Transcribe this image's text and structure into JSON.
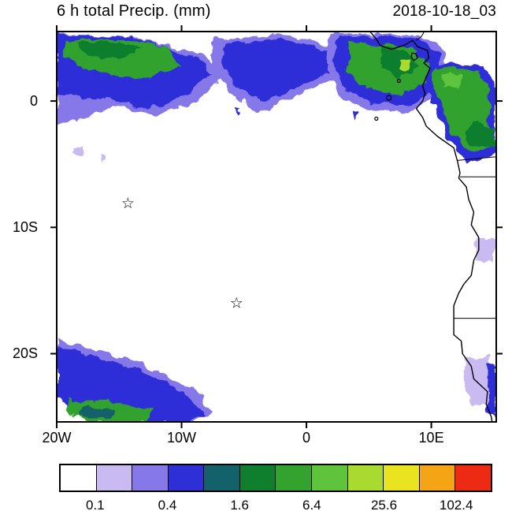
{
  "chart_data": {
    "type": "heatmap",
    "title": "6 h total Precip. (mm)",
    "timestamp": "2018-10-18_03",
    "units": "mm",
    "x_axis": {
      "range": [
        -20,
        15.2
      ],
      "ticks": [
        {
          "label": "20W",
          "lon": -20
        },
        {
          "label": "10W",
          "lon": -10
        },
        {
          "label": "0",
          "lon": 0
        },
        {
          "label": "10E",
          "lon": 10
        }
      ]
    },
    "y_axis": {
      "range": [
        -25.4,
        5.5
      ],
      "ticks": [
        {
          "label": "0",
          "lat": 0
        },
        {
          "label": "10S",
          "lat": -10
        },
        {
          "label": "20S",
          "lat": -20
        }
      ]
    },
    "colorbar": {
      "labels": [
        "0.1",
        "0.4",
        "1.6",
        "6.4",
        "25.6",
        "102.4"
      ],
      "levels_mm": [
        0.1,
        0.2,
        0.4,
        0.8,
        1.6,
        3.2,
        6.4,
        12.8,
        25.6,
        51.2,
        102.4
      ],
      "colors": [
        "#FFFFFF",
        "#C9BAF2",
        "#8678E9",
        "#2F2FD8",
        "#12616B",
        "#0F7E2D",
        "#33A22F",
        "#5FC43C",
        "#A9DA2F",
        "#E9E41F",
        "#F4A414",
        "#ED2B15"
      ]
    },
    "marker_symbol": "☆",
    "markers": [
      {
        "lon": -14.3,
        "lat": -8.1
      },
      {
        "lon": -5.6,
        "lat": -16.0
      }
    ],
    "precip_regions": [
      {
        "level": 2,
        "points": [
          [
            -20,
            5.4
          ],
          [
            -13.8,
            5
          ],
          [
            -8.2,
            3.6
          ],
          [
            -6.6,
            2.1
          ],
          [
            -8.8,
            -0.1
          ],
          [
            -11.9,
            -1.1
          ],
          [
            -15.1,
            -0.4
          ],
          [
            -18.2,
            -1.4
          ],
          [
            -20,
            -2
          ]
        ]
      },
      {
        "level": 3,
        "points": [
          [
            -20,
            5.3
          ],
          [
            -14,
            5
          ],
          [
            -9,
            3.5
          ],
          [
            -7.5,
            2.2
          ],
          [
            -9.5,
            0.5
          ],
          [
            -12.5,
            -0.6
          ],
          [
            -16,
            0.2
          ],
          [
            -20,
            0.5
          ]
        ]
      },
      {
        "level": 6,
        "points": [
          [
            -19.2,
            4.8
          ],
          [
            -14.5,
            4.9
          ],
          [
            -11,
            4.1
          ],
          [
            -10,
            2.7
          ],
          [
            -12.6,
            1.8
          ],
          [
            -15.7,
            2.1
          ],
          [
            -18.2,
            2.7
          ],
          [
            -19.5,
            3.6
          ]
        ]
      },
      {
        "level": 5,
        "points": [
          [
            -18.5,
            4.6
          ],
          [
            -15,
            4.7
          ],
          [
            -13.2,
            4.1
          ],
          [
            -15.2,
            3.4
          ],
          [
            -17.6,
            3.5
          ]
        ]
      },
      {
        "level": 2,
        "points": [
          [
            -7.5,
            4.9
          ],
          [
            -1.5,
            5.2
          ],
          [
            2.3,
            4.2
          ],
          [
            3,
            2.2
          ],
          [
            -0.3,
            0.6
          ],
          [
            -3.9,
            -0.9
          ],
          [
            -6.2,
            0.6
          ],
          [
            -7.6,
            2.8
          ]
        ]
      },
      {
        "level": 3,
        "points": [
          [
            -6.3,
            4.6
          ],
          [
            -1.9,
            4.9
          ],
          [
            1.9,
            3.9
          ],
          [
            2.6,
            2.4
          ],
          [
            -0.6,
            1.1
          ],
          [
            -3.7,
            -0.1
          ],
          [
            -5.6,
            1.1
          ],
          [
            -6.9,
            3
          ]
        ]
      },
      {
        "level": 2,
        "points": [
          [
            1.8,
            5.4
          ],
          [
            9.2,
            5.2
          ],
          [
            11.2,
            3.8
          ],
          [
            10.8,
            0.6
          ],
          [
            8,
            -1
          ],
          [
            4.6,
            -0.6
          ],
          [
            2.2,
            0.8
          ],
          [
            1.6,
            3.4
          ]
        ]
      },
      {
        "level": 3,
        "points": [
          [
            2.6,
            5.2
          ],
          [
            8.9,
            5
          ],
          [
            10.7,
            3.6
          ],
          [
            10.4,
            1.1
          ],
          [
            8.2,
            -0.4
          ],
          [
            5.1,
            -0.1
          ],
          [
            2.9,
            1.1
          ],
          [
            2.2,
            3.3
          ]
        ]
      },
      {
        "level": 6,
        "points": [
          [
            3.5,
            4.6
          ],
          [
            8.2,
            4.4
          ],
          [
            9.8,
            3
          ],
          [
            9.5,
            1.4
          ],
          [
            7.3,
            0.5
          ],
          [
            4.8,
            1
          ],
          [
            3.2,
            2.4
          ]
        ]
      },
      {
        "level": 5,
        "points": [
          [
            6,
            4.3
          ],
          [
            8,
            4
          ],
          [
            9,
            2.8
          ],
          [
            7.5,
            1.8
          ],
          [
            6,
            2.6
          ]
        ]
      },
      {
        "level": 8,
        "points": [
          [
            7.6,
            3.2
          ],
          [
            8.3,
            3
          ],
          [
            8.1,
            2.5
          ],
          [
            7.5,
            2.7
          ]
        ]
      },
      {
        "level": 3,
        "points": [
          [
            10,
            3
          ],
          [
            14,
            2.8
          ],
          [
            15.2,
            1.2
          ],
          [
            15,
            -1.6
          ],
          [
            15.2,
            -4.3
          ],
          [
            12.9,
            -4.8
          ],
          [
            11.2,
            -2.8
          ],
          [
            10.2,
            -0.4
          ],
          [
            9.4,
            1.6
          ]
        ]
      },
      {
        "level": 6,
        "points": [
          [
            10.4,
            2.7
          ],
          [
            13.6,
            2.4
          ],
          [
            14.8,
            1.1
          ],
          [
            14.5,
            -1.4
          ],
          [
            15.2,
            -3.6
          ],
          [
            13.3,
            -4.2
          ],
          [
            11.7,
            -2.6
          ],
          [
            10.7,
            -0.1
          ],
          [
            10,
            1.8
          ]
        ]
      },
      {
        "level": 5,
        "points": [
          [
            13.2,
            -1.6
          ],
          [
            15,
            -2.2
          ],
          [
            15,
            -3.8
          ],
          [
            13,
            -3.6
          ],
          [
            12.6,
            -2.4
          ]
        ]
      },
      {
        "level": 7,
        "points": [
          [
            11,
            2.2
          ],
          [
            12.6,
            2
          ],
          [
            12.2,
            1
          ],
          [
            10.9,
            1.2
          ]
        ]
      },
      {
        "level": 1,
        "points": [
          [
            13.6,
            -10.8
          ],
          [
            15.2,
            -11.1
          ],
          [
            15,
            -12.9
          ],
          [
            13.6,
            -12.6
          ]
        ]
      },
      {
        "level": 1,
        "points": [
          [
            12.8,
            -20.4
          ],
          [
            14.7,
            -20.1
          ],
          [
            15,
            -23.9
          ],
          [
            13.3,
            -24.2
          ],
          [
            12.5,
            -22.3
          ]
        ]
      },
      {
        "level": 3,
        "points": [
          [
            14.6,
            -20.8
          ],
          [
            15.2,
            -21
          ],
          [
            15.2,
            -25
          ],
          [
            14.4,
            -24.6
          ]
        ]
      },
      {
        "level": 2,
        "points": [
          [
            -20,
            -18.9
          ],
          [
            -16.5,
            -19.8
          ],
          [
            -12.8,
            -21
          ],
          [
            -8.8,
            -22.9
          ],
          [
            -7.6,
            -24.6
          ],
          [
            -9.5,
            -25.4
          ],
          [
            -15.5,
            -25.4
          ],
          [
            -19,
            -24.2
          ],
          [
            -20,
            -22.8
          ]
        ]
      },
      {
        "level": 3,
        "points": [
          [
            -20,
            -19.5
          ],
          [
            -17,
            -20.1
          ],
          [
            -13.2,
            -21.4
          ],
          [
            -9.4,
            -23.3
          ],
          [
            -8.2,
            -24.8
          ],
          [
            -10,
            -25.4
          ],
          [
            -15.1,
            -25.4
          ],
          [
            -18.9,
            -24.5
          ],
          [
            -20,
            -23.3
          ]
        ]
      },
      {
        "level": 6,
        "points": [
          [
            -19.2,
            -23.6
          ],
          [
            -15.1,
            -23.9
          ],
          [
            -12.3,
            -24.5
          ],
          [
            -12.9,
            -25.4
          ],
          [
            -17.6,
            -25.4
          ],
          [
            -19.2,
            -24.5
          ]
        ]
      },
      {
        "level": 4,
        "points": [
          [
            -18,
            -24.2
          ],
          [
            -15.5,
            -24.4
          ],
          [
            -15.8,
            -25.2
          ],
          [
            -18.2,
            -25
          ]
        ]
      },
      {
        "level": 1,
        "points": [
          [
            -18.6,
            -3.6
          ],
          [
            -17.8,
            -3.7
          ],
          [
            -18,
            -4.3
          ],
          [
            -18.7,
            -4.1
          ]
        ]
      },
      {
        "level": 1,
        "points": [
          [
            -16.5,
            -4.2
          ],
          [
            -16,
            -4.4
          ],
          [
            -16.4,
            -4.8
          ]
        ]
      },
      {
        "level": 3,
        "points": [
          [
            3.6,
            -0.9
          ],
          [
            4.1,
            -1
          ],
          [
            3.9,
            -1.5
          ]
        ]
      },
      {
        "level": 3,
        "points": [
          [
            -5.8,
            -0.5
          ],
          [
            -5.3,
            -0.7
          ],
          [
            -5.6,
            -1.1
          ]
        ]
      }
    ],
    "geography": {
      "coastlines": [
        {
          "name": "africa-coastline",
          "width": 1.4,
          "points": [
            [
              5,
              5.6
            ],
            [
              5.6,
              4.9
            ],
            [
              5.9,
              4.4
            ],
            [
              6.8,
              4.1
            ],
            [
              7.8,
              4.4
            ],
            [
              8.5,
              4.8
            ],
            [
              8.9,
              4.3
            ],
            [
              9.7,
              4
            ],
            [
              9.8,
              3.4
            ],
            [
              9.4,
              3
            ],
            [
              9.9,
              2.6
            ],
            [
              9.6,
              1.9
            ],
            [
              9.3,
              1.2
            ],
            [
              9.5,
              0.6
            ],
            [
              9.3,
              0
            ],
            [
              8.8,
              -0.6
            ],
            [
              9.3,
              -1.3
            ],
            [
              9.6,
              -2
            ],
            [
              10.5,
              -2.8
            ],
            [
              11.8,
              -3.7
            ],
            [
              12.1,
              -4.8
            ],
            [
              12.3,
              -5.7
            ],
            [
              12.2,
              -6.1
            ],
            [
              12.8,
              -6.8
            ],
            [
              13,
              -7.8
            ],
            [
              13.4,
              -8.8
            ],
            [
              13.2,
              -9.8
            ],
            [
              13.8,
              -10.8
            ],
            [
              13.8,
              -11.8
            ],
            [
              13.4,
              -12.6
            ],
            [
              13.2,
              -13.8
            ],
            [
              12.6,
              -14.5
            ],
            [
              12.2,
              -15.2
            ],
            [
              11.8,
              -16.2
            ],
            [
              11.8,
              -17.3
            ],
            [
              11.8,
              -18.5
            ],
            [
              12.4,
              -19
            ],
            [
              12.5,
              -20
            ],
            [
              13.2,
              -21
            ],
            [
              13.4,
              -22
            ],
            [
              14.5,
              -23
            ],
            [
              14.4,
              -24
            ],
            [
              14.8,
              -25
            ],
            [
              14.9,
              -25.6
            ]
          ]
        },
        {
          "name": "bioko-island-coast",
          "width": 1.2,
          "closed": true,
          "points": [
            [
              8.45,
              3.8
            ],
            [
              8.75,
              3.75
            ],
            [
              8.9,
              3.4
            ],
            [
              8.6,
              3.2
            ],
            [
              8.4,
              3.5
            ]
          ]
        },
        {
          "name": "nigeria-cameroon-border",
          "width": 1,
          "points": [
            [
              8.8,
              4.8
            ],
            [
              9.2,
              5.1
            ],
            [
              9.5,
              5.6
            ]
          ]
        },
        {
          "name": "congo-border-north",
          "width": 1,
          "points": [
            [
              12.1,
              -4.7
            ],
            [
              15.3,
              -4.4
            ]
          ]
        },
        {
          "name": "congo-border-south",
          "width": 1,
          "points": [
            [
              12.3,
              -6
            ],
            [
              15.3,
              -6
            ]
          ]
        },
        {
          "name": "angola-namibia-border",
          "width": 1,
          "points": [
            [
              11.8,
              -17.2
            ],
            [
              15.3,
              -17.2
            ]
          ]
        }
      ],
      "islands": [
        {
          "name": "sao-tome",
          "lon": 6.6,
          "lat": 0.25,
          "r": 3
        },
        {
          "name": "principe",
          "lon": 7.4,
          "lat": 1.6,
          "r": 2
        },
        {
          "name": "annobon",
          "lon": 5.6,
          "lat": -1.4,
          "r": 2
        }
      ]
    }
  }
}
